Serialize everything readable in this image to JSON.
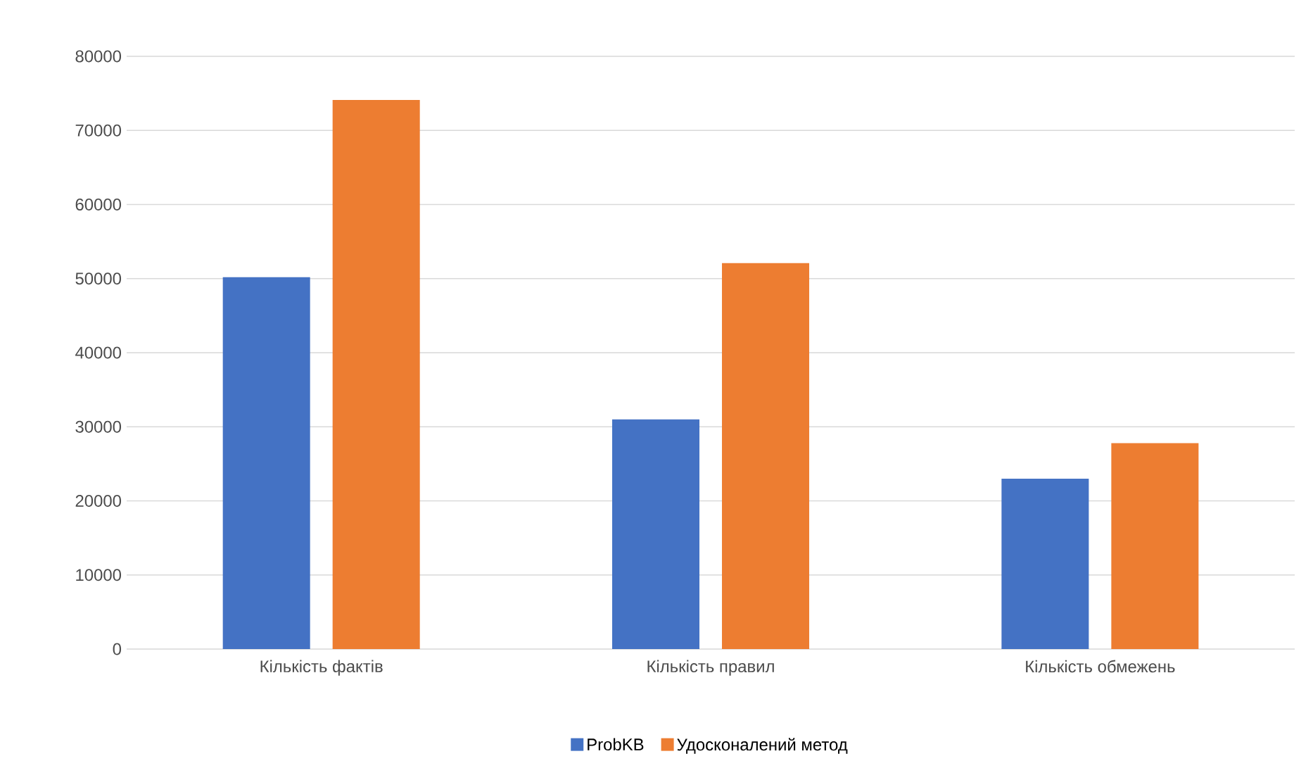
{
  "chart_data": {
    "type": "bar",
    "categories": [
      "Кількість фактів",
      "Кількість правил",
      "Кількість обмежень"
    ],
    "series": [
      {
        "name": "ProbKB",
        "color": "#4472c4",
        "values": [
          50200,
          31000,
          23000
        ]
      },
      {
        "name": "Удосконалений метод",
        "color": "#ed7d31",
        "values": [
          74100,
          52100,
          27800
        ]
      }
    ],
    "ylim": [
      0,
      80000
    ],
    "yticks": [
      0,
      10000,
      20000,
      30000,
      40000,
      50000,
      60000,
      70000,
      80000
    ],
    "grid": "y",
    "legend": "bottom"
  }
}
